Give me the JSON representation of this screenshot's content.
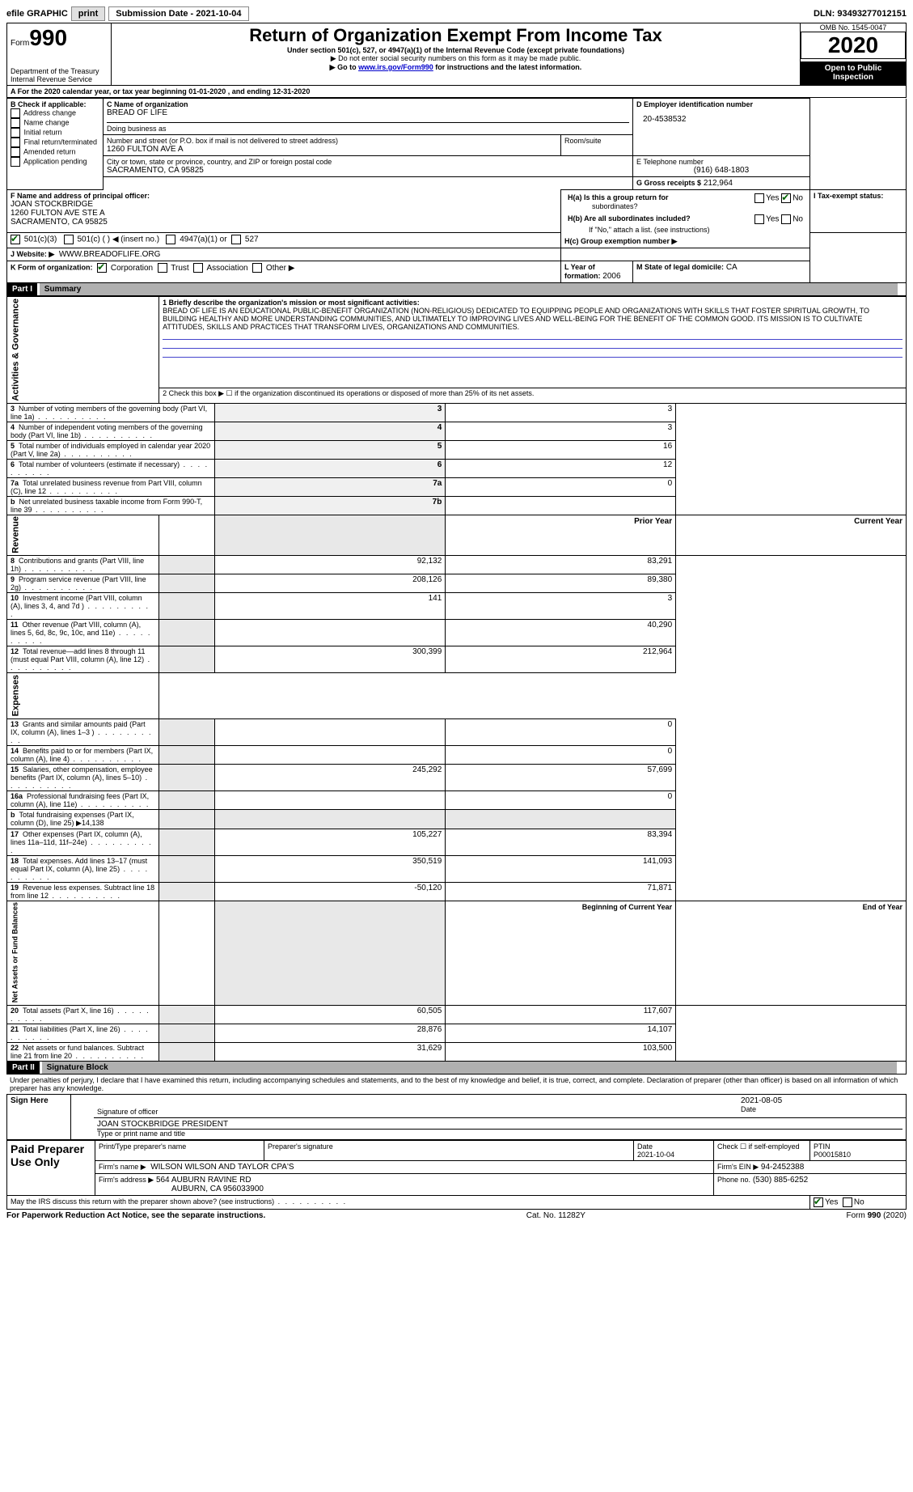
{
  "topbar": {
    "efile_label": "efile GRAPHIC",
    "print_btn": "print",
    "submission_label": "Submission Date - 2021-10-04",
    "dln": "DLN: 93493277012151"
  },
  "header": {
    "form_label": "Form",
    "form_number": "990",
    "dept": "Department of the Treasury\nInternal Revenue Service",
    "title": "Return of Organization Exempt From Income Tax",
    "subtitle": "Under section 501(c), 527, or 4947(a)(1) of the Internal Revenue Code (except private foundations)",
    "note1": "▶ Do not enter social security numbers on this form as it may be made public.",
    "note2_pre": "▶ Go to ",
    "note2_link": "www.irs.gov/Form990",
    "note2_post": " for instructions and the latest information.",
    "omb": "OMB No. 1545-0047",
    "year": "2020",
    "open": "Open to Public Inspection"
  },
  "sectionA": {
    "heading": "A For the 2020 calendar year, or tax year beginning 01-01-2020   , and ending 12-31-2020",
    "b_label": "B Check if applicable:",
    "b_items": [
      "Address change",
      "Name change",
      "Initial return",
      "Final return/terminated",
      "Amended return",
      "Application pending"
    ],
    "c_label": "C Name of organization",
    "c_name": "BREAD OF LIFE",
    "dba_label": "Doing business as",
    "street_label": "Number and street (or P.O. box if mail is not delivered to street address)",
    "street": "1260 FULTON AVE A",
    "room_label": "Room/suite",
    "city_label": "City or town, state or province, country, and ZIP or foreign postal code",
    "city": "SACRAMENTO, CA  95825",
    "d_label": "D Employer identification number",
    "d_val": "20-4538532",
    "e_label": "E Telephone number",
    "e_val": "(916) 648-1803",
    "g_label": "G Gross receipts $",
    "g_val": "212,964",
    "f_label": "F  Name and address of principal officer:",
    "f_name": "JOAN STOCKBRIDGE",
    "f_addr1": "1260 FULTON AVE STE A",
    "f_addr2": "SACRAMENTO, CA  95825",
    "ha_label": "H(a)  Is this a group return for",
    "ha_label2": "subordinates?",
    "hb_label": "H(b)  Are all subordinates included?",
    "hb_note": "If \"No,\" attach a list. (see instructions)",
    "hc_label": "H(c)  Group exemption number ▶",
    "yes": "Yes",
    "no": "No",
    "i_label": "I  Tax-exempt status:",
    "i_501c3": "501(c)(3)",
    "i_501c": "501(c) (   ) ◀ (insert no.)",
    "i_4947": "4947(a)(1) or",
    "i_527": "527",
    "j_label": "J  Website: ▶",
    "j_val": "WWW.BREADOFLIFE.ORG",
    "k_label": "K Form of organization:",
    "k_items": [
      "Corporation",
      "Trust",
      "Association",
      "Other ▶"
    ],
    "l_label": "L Year of formation:",
    "l_val": "2006",
    "m_label": "M State of legal domicile:",
    "m_val": "CA"
  },
  "part1": {
    "part_label": "Part I",
    "title": "Summary",
    "vert_ag": "Activities & Governance",
    "vert_rev": "Revenue",
    "vert_exp": "Expenses",
    "vert_net": "Net Assets or Fund Balances",
    "line1_label": "1  Briefly describe the organization's mission or most significant activities:",
    "line1_text": "BREAD OF LIFE IS AN EDUCATIONAL PUBLIC-BENEFIT ORGANIZATION (NON-RELIGIOUS) DEDICATED TO EQUIPPING PEOPLE AND ORGANIZATIONS WITH SKILLS THAT FOSTER SPIRITUAL GROWTH, TO BUILDING HEALTHY AND MORE UNDERSTANDING COMMUNITIES, AND ULTIMATELY TO IMPROVING LIVES AND WELL-BEING FOR THE BENEFIT OF THE COMMON GOOD. ITS MISSION IS TO CULTIVATE ATTITUDES, SKILLS AND PRACTICES THAT TRANSFORM LIVES, ORGANIZATIONS AND COMMUNITIES.",
    "line2": "2   Check this box ▶ ☐  if the organization discontinued its operations or disposed of more than 25% of its net assets.",
    "rows_ag": [
      {
        "n": "3",
        "t": "Number of voting members of the governing body (Part VI, line 1a)",
        "box": "3",
        "v": "3"
      },
      {
        "n": "4",
        "t": "Number of independent voting members of the governing body (Part VI, line 1b)",
        "box": "4",
        "v": "3"
      },
      {
        "n": "5",
        "t": "Total number of individuals employed in calendar year 2020 (Part V, line 2a)",
        "box": "5",
        "v": "16"
      },
      {
        "n": "6",
        "t": "Total number of volunteers (estimate if necessary)",
        "box": "6",
        "v": "12"
      },
      {
        "n": "7a",
        "t": "Total unrelated business revenue from Part VIII, column (C), line 12",
        "box": "7a",
        "v": "0"
      },
      {
        "n": "b",
        "t": "Net unrelated business taxable income from Form 990-T, line 39",
        "box": "7b",
        "v": ""
      }
    ],
    "col_prior": "Prior Year",
    "col_current": "Current Year",
    "rows_rev": [
      {
        "n": "8",
        "t": "Contributions and grants (Part VIII, line 1h)",
        "p": "92,132",
        "c": "83,291"
      },
      {
        "n": "9",
        "t": "Program service revenue (Part VIII, line 2g)",
        "p": "208,126",
        "c": "89,380"
      },
      {
        "n": "10",
        "t": "Investment income (Part VIII, column (A), lines 3, 4, and 7d )",
        "p": "141",
        "c": "3"
      },
      {
        "n": "11",
        "t": "Other revenue (Part VIII, column (A), lines 5, 6d, 8c, 9c, 10c, and 11e)",
        "p": "",
        "c": "40,290"
      },
      {
        "n": "12",
        "t": "Total revenue—add lines 8 through 11 (must equal Part VIII, column (A), line 12)",
        "p": "300,399",
        "c": "212,964"
      }
    ],
    "rows_exp": [
      {
        "n": "13",
        "t": "Grants and similar amounts paid (Part IX, column (A), lines 1–3 )",
        "p": "",
        "c": "0"
      },
      {
        "n": "14",
        "t": "Benefits paid to or for members (Part IX, column (A), line 4)",
        "p": "",
        "c": "0"
      },
      {
        "n": "15",
        "t": "Salaries, other compensation, employee benefits (Part IX, column (A), lines 5–10)",
        "p": "245,292",
        "c": "57,699"
      },
      {
        "n": "16a",
        "t": "Professional fundraising fees (Part IX, column (A), line 11e)",
        "p": "",
        "c": "0"
      },
      {
        "n": "b",
        "t": "Total fundraising expenses (Part IX, column (D), line 25) ▶14,138",
        "p": "",
        "c": "",
        "shade": true
      },
      {
        "n": "17",
        "t": "Other expenses (Part IX, column (A), lines 11a–11d, 11f–24e)",
        "p": "105,227",
        "c": "83,394"
      },
      {
        "n": "18",
        "t": "Total expenses. Add lines 13–17 (must equal Part IX, column (A), line 25)",
        "p": "350,519",
        "c": "141,093"
      },
      {
        "n": "19",
        "t": "Revenue less expenses. Subtract line 18 from line 12",
        "p": "-50,120",
        "c": "71,871"
      }
    ],
    "col_begin": "Beginning of Current Year",
    "col_end": "End of Year",
    "rows_net": [
      {
        "n": "20",
        "t": "Total assets (Part X, line 16)",
        "p": "60,505",
        "c": "117,607"
      },
      {
        "n": "21",
        "t": "Total liabilities (Part X, line 26)",
        "p": "28,876",
        "c": "14,107"
      },
      {
        "n": "22",
        "t": "Net assets or fund balances. Subtract line 21 from line 20",
        "p": "31,629",
        "c": "103,500"
      }
    ]
  },
  "part2": {
    "part_label": "Part II",
    "title": "Signature Block",
    "decl": "Under penalties of perjury, I declare that I have examined this return, including accompanying schedules and statements, and to the best of my knowledge and belief, it is true, correct, and complete. Declaration of preparer (other than officer) is based on all information of which preparer has any knowledge.",
    "sign_here": "Sign Here",
    "sig_officer": "Signature of officer",
    "sig_date": "2021-08-05",
    "date_label": "Date",
    "officer_name": "JOAN STOCKBRIDGE  PRESIDENT",
    "type_name": "Type or print name and title",
    "paid_label": "Paid Preparer Use Only",
    "prep_name_label": "Print/Type preparer's name",
    "prep_sig_label": "Preparer's signature",
    "prep_date_label": "Date",
    "prep_date": "2021-10-04",
    "self_emp": "Check ☐ if self-employed",
    "ptin_label": "PTIN",
    "ptin": "P00015810",
    "firm_name_label": "Firm's name    ▶",
    "firm_name": "WILSON WILSON AND TAYLOR CPA'S",
    "firm_ein_label": "Firm's EIN ▶",
    "firm_ein": "94-2452388",
    "firm_addr_label": "Firm's address ▶",
    "firm_addr1": "564 AUBURN RAVINE RD",
    "firm_addr2": "AUBURN, CA  956033900",
    "phone_label": "Phone no.",
    "phone": "(530) 885-6252",
    "discuss": "May the IRS discuss this return with the preparer shown above? (see instructions)",
    "yes": "Yes",
    "no": "No"
  },
  "footer": {
    "left": "For Paperwork Reduction Act Notice, see the separate instructions.",
    "mid": "Cat. No. 11282Y",
    "right_pre": "Form ",
    "right_bold": "990",
    "right_post": " (2020)"
  }
}
